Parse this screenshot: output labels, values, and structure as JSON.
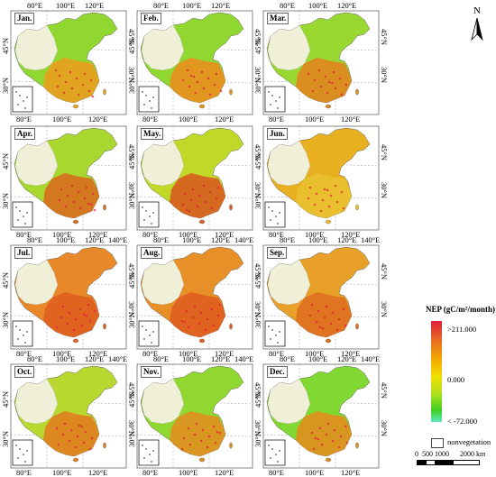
{
  "panels": [
    {
      "label": "Jan.",
      "row": 0,
      "col": 0,
      "top_ticks": [
        "80°E",
        "100°E",
        "120°E"
      ],
      "bottom_ticks": [
        "80°E",
        "100°E",
        "120°E"
      ],
      "lat_left": [
        "45°N",
        "30°N"
      ],
      "lat_right": [
        "45°N",
        "30°N"
      ]
    },
    {
      "label": "Feb.",
      "row": 0,
      "col": 1,
      "top_ticks": [
        "80°E",
        "100°E",
        "120°E"
      ],
      "bottom_ticks": [
        "80°E",
        "100°E",
        "120°E"
      ],
      "lat_left": [
        "45°N",
        "30°N"
      ],
      "lat_right": [
        "45°N",
        "30°N"
      ]
    },
    {
      "label": "Mar.",
      "row": 0,
      "col": 2,
      "top_ticks": [
        "80°E",
        "100°E",
        "120°E"
      ],
      "bottom_ticks": [
        "80°E",
        "100°E",
        "120°E"
      ],
      "lat_left": [
        "45°N",
        "30°N"
      ],
      "lat_right": [
        "45°N",
        "30°N"
      ]
    },
    {
      "label": "Apr.",
      "row": 1,
      "col": 0,
      "top_ticks": [],
      "bottom_ticks": [
        "80°E",
        "100°E",
        "120°E"
      ],
      "lat_left": [
        "45°N",
        "30°N"
      ],
      "lat_right": [
        "45°N",
        "30°N"
      ]
    },
    {
      "label": "May.",
      "row": 1,
      "col": 1,
      "top_ticks": [],
      "bottom_ticks": [
        "80°E",
        "100°E",
        "120°E"
      ],
      "lat_left": [
        "45°N",
        "30°N"
      ],
      "lat_right": [
        "45°N",
        "30°N"
      ]
    },
    {
      "label": "Jun.",
      "row": 1,
      "col": 2,
      "top_ticks": [],
      "bottom_ticks": [
        "80°E",
        "100°E",
        "120°E"
      ],
      "lat_left": [
        "45°N",
        "30°N"
      ],
      "lat_right": [
        "45°N",
        "30°N"
      ]
    },
    {
      "label": "Jul.",
      "row": 2,
      "col": 0,
      "top_ticks": [
        "80°E",
        "100°E",
        "120°E",
        "140°E"
      ],
      "bottom_ticks": [
        "80°E",
        "100°E",
        "120°E"
      ],
      "lat_left": [
        "45°N",
        "30°N"
      ],
      "lat_right": [
        "45°N",
        "30°N"
      ]
    },
    {
      "label": "Aug.",
      "row": 2,
      "col": 1,
      "top_ticks": [
        "80°E",
        "100°E",
        "120°E",
        "140°E"
      ],
      "bottom_ticks": [
        "80°E",
        "100°E",
        "120°E"
      ],
      "lat_left": [
        "45°N",
        "30°N"
      ],
      "lat_right": [
        "45°N",
        "30°N"
      ]
    },
    {
      "label": "Sep.",
      "row": 2,
      "col": 2,
      "top_ticks": [
        "80°E",
        "100°E",
        "120°E",
        "140°E"
      ],
      "bottom_ticks": [
        "80°E",
        "100°E",
        "120°E"
      ],
      "lat_left": [
        "45°N",
        "30°N"
      ],
      "lat_right": [
        "45°N",
        "30°N"
      ]
    },
    {
      "label": "Oct.",
      "row": 3,
      "col": 0,
      "top_ticks": [
        "80°E",
        "100°E",
        "120°E",
        "140°E"
      ],
      "bottom_ticks": [
        "80°E",
        "100°E",
        "120°E"
      ],
      "lat_left": [
        "45°N",
        "30°N"
      ],
      "lat_right": [
        "45°N",
        "30°N"
      ]
    },
    {
      "label": "Nov.",
      "row": 3,
      "col": 1,
      "top_ticks": [
        "80°E",
        "100°E",
        "120°E",
        "140°E"
      ],
      "bottom_ticks": [
        "80°E",
        "100°E",
        "120°E"
      ],
      "lat_left": [
        "45°N",
        "30°N"
      ],
      "lat_right": [
        "45°N",
        "30°N"
      ]
    },
    {
      "label": "Dec.",
      "row": 3,
      "col": 2,
      "top_ticks": [
        "80°E",
        "100°E",
        "120°E",
        "140°E"
      ],
      "bottom_ticks": [
        "80°E",
        "100°E",
        "120°E"
      ],
      "lat_left": [
        "45°N",
        "30°N"
      ],
      "lat_right": [
        "45°N",
        "30°N"
      ]
    }
  ],
  "north_arrow": {
    "letter": "N"
  },
  "legend": {
    "title": "NEP (gC/m²/month)",
    "max_label": ">211.000",
    "mid_label": "0.000",
    "min_label": "< -72.000",
    "nonveg_label": "nonvegetation"
  },
  "scale_bar": {
    "labels": "0  500 1000      2000",
    "unit": "km"
  },
  "colors": {
    "high": "#e0203a",
    "mid_high": "#f4b000",
    "zero": "#f0e000",
    "low": "#40d020",
    "min": "#60e8c0",
    "nonvegetation": "#ffffff"
  },
  "panel_colors": [
    {
      "north": "#90d830",
      "south": "#e8a020",
      "west": "#f0f0d8"
    },
    {
      "north": "#90d830",
      "south": "#e89020",
      "west": "#f0f0d8"
    },
    {
      "north": "#98d830",
      "south": "#e08820",
      "west": "#f0f0d8"
    },
    {
      "north": "#a8d830",
      "south": "#d87020",
      "west": "#f0f0d8"
    },
    {
      "north": "#c0d828",
      "south": "#d86020",
      "west": "#f0f0d8"
    },
    {
      "north": "#e8b020",
      "south": "#e8c030",
      "west": "#f0f0d8"
    },
    {
      "north": "#e88828",
      "south": "#e06020",
      "west": "#f0f0d8"
    },
    {
      "north": "#e89028",
      "south": "#e06020",
      "west": "#f0f0d8"
    },
    {
      "north": "#e8a028",
      "south": "#e07020",
      "west": "#f0f0d8"
    },
    {
      "north": "#b8d830",
      "south": "#e08020",
      "west": "#f0f0d8"
    },
    {
      "north": "#90d830",
      "south": "#e09020",
      "west": "#f0f0d8"
    },
    {
      "north": "#80d830",
      "south": "#e09020",
      "west": "#f0f0d8"
    }
  ]
}
